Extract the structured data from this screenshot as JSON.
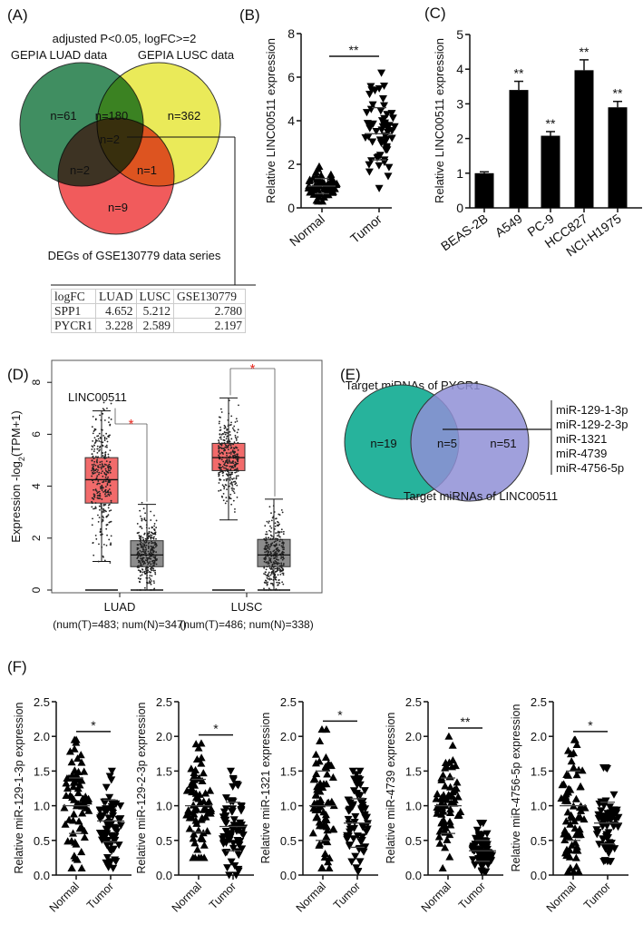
{
  "panel_labels": [
    "(A)",
    "(B)",
    "(C)",
    "(D)",
    "(E)",
    "(F)"
  ],
  "chart_data": [
    {
      "panel": "A",
      "type": "venn",
      "title": "adjusted P<0.05, logFC>=2",
      "sets": [
        {
          "name": "GEPIA LUAD data",
          "color": "#1f7a45"
        },
        {
          "name": "GEPIA LUSC data",
          "color": "#e6e63c"
        },
        {
          "name": "DEGs of GSE130779 data series",
          "color": "#ee3e40"
        }
      ],
      "regions": {
        "luad_only": "n=61",
        "luad_lusc": "n=180",
        "lusc_only": "n=362",
        "all_three": "n=2",
        "luad_gse": "n=2",
        "lusc_gse": "n=1",
        "gse_only": "n=9"
      },
      "table": {
        "header": [
          "logFC",
          "LUAD",
          "LUSC",
          "GSE130779"
        ],
        "rows": [
          [
            "SPP1",
            "4.652",
            "5.212",
            "2.780"
          ],
          [
            "PYCR1",
            "3.228",
            "2.589",
            "2.197"
          ]
        ]
      }
    },
    {
      "panel": "B",
      "type": "scatter",
      "ylabel": "Relative LINC00511 expression",
      "ylim": [
        0,
        8
      ],
      "yticks": [
        0,
        2,
        4,
        6,
        8
      ],
      "categories": [
        "Normal",
        "Tumor"
      ],
      "groups": [
        {
          "mean": 1.0,
          "sd": 0.35,
          "min": 0.3,
          "max": 1.9,
          "marker": "triangle-up"
        },
        {
          "mean": 3.4,
          "sd": 1.2,
          "min": 0.9,
          "max": 6.2,
          "marker": "triangle-down"
        }
      ],
      "significance": "**"
    },
    {
      "panel": "C",
      "type": "bar",
      "ylabel": "Relative LINC00511 expression",
      "ylim": [
        0,
        5
      ],
      "yticks": [
        0,
        1,
        2,
        3,
        4,
        5
      ],
      "categories": [
        "BEAS-2B",
        "A549",
        "PC-9",
        "HCC827",
        "NCI-H1975"
      ],
      "values": [
        1.0,
        3.4,
        2.08,
        3.97,
        2.9
      ],
      "errors": [
        0.04,
        0.25,
        0.12,
        0.3,
        0.17
      ],
      "significance": [
        "",
        "**",
        "**",
        "**",
        "**"
      ],
      "color": "#000000"
    },
    {
      "panel": "D",
      "type": "box",
      "title": "LINC00511",
      "ylabel": {
        "prefix": "Expression -log",
        "sub": "2",
        "suffix": "(TPM+1)"
      },
      "ylim": [
        0,
        8
      ],
      "yticks": [
        0,
        2,
        4,
        6,
        8
      ],
      "categories": [
        {
          "label": "LUAD",
          "sub": "(num(T)=483; num(N)=347)"
        },
        {
          "label": "LUSC",
          "sub": "(num(T)=486; num(N)=338)"
        }
      ],
      "boxes": [
        {
          "group": "LUAD",
          "type": "T",
          "q1": 3.35,
          "median": 4.25,
          "q3": 5.1,
          "low": 1.1,
          "high": 6.9,
          "color": "#f26b6b"
        },
        {
          "group": "LUAD",
          "type": "N",
          "q1": 0.9,
          "median": 1.35,
          "q3": 1.9,
          "low": 0.0,
          "high": 3.3,
          "color": "#8c8c8c"
        },
        {
          "group": "LUSC",
          "type": "T",
          "q1": 4.6,
          "median": 5.1,
          "q3": 5.65,
          "low": 2.7,
          "high": 7.4,
          "color": "#f26b6b"
        },
        {
          "group": "LUSC",
          "type": "N",
          "q1": 0.9,
          "median": 1.35,
          "q3": 1.95,
          "low": 0.0,
          "high": 3.5,
          "color": "#8c8c8c"
        }
      ],
      "significance": "*",
      "significance_color": "#e8281e"
    },
    {
      "panel": "E",
      "type": "venn",
      "sets": [
        {
          "name": "Target miRNAs of PYCR1",
          "color": "#27b39c"
        },
        {
          "name": "Target miRNAs of LINC00511",
          "color": "#8f8fd6"
        }
      ],
      "regions": {
        "pycr1_only": "n=19",
        "both": "n=5",
        "linc_only": "n=51"
      },
      "overlap_list": [
        "miR-129-1-3p",
        "miR-129-2-3p",
        "miR-1321",
        "miR-4739",
        "miR-4756-5p"
      ]
    },
    {
      "panel": "F",
      "type": "scatter",
      "ylim": [
        0,
        2.5
      ],
      "yticks": [
        "0.0",
        "0.5",
        "1.0",
        "1.5",
        "2.0",
        "2.5"
      ],
      "categories": [
        "Normal",
        "Tumor"
      ],
      "subplots": [
        {
          "ylabel": "Relative miR-129-1-3p expression",
          "significance": "*",
          "groups": [
            {
              "mean": 1.0,
              "sd": 0.4,
              "min": 0.1,
              "max": 1.95
            },
            {
              "mean": 0.78,
              "sd": 0.3,
              "min": 0.1,
              "max": 1.5
            }
          ]
        },
        {
          "ylabel": "Relative miR-129-2-3p expression",
          "significance": "*",
          "groups": [
            {
              "mean": 1.0,
              "sd": 0.38,
              "min": 0.25,
              "max": 1.9
            },
            {
              "mean": 0.7,
              "sd": 0.35,
              "min": 0.0,
              "max": 1.5
            }
          ]
        },
        {
          "ylabel": "Relative miR-1321 expression",
          "significance": "*",
          "groups": [
            {
              "mean": 1.0,
              "sd": 0.5,
              "min": 0.1,
              "max": 2.1
            },
            {
              "mean": 0.75,
              "sd": 0.35,
              "min": 0.05,
              "max": 1.5
            }
          ]
        },
        {
          "ylabel": "Relative miR-4739 expression",
          "significance": "**",
          "groups": [
            {
              "mean": 1.0,
              "sd": 0.4,
              "min": 0.1,
              "max": 2.0
            },
            {
              "mean": 0.35,
              "sd": 0.15,
              "min": 0.05,
              "max": 0.75
            }
          ]
        },
        {
          "ylabel": "Relative miR-4756-5p expression",
          "significance": "*",
          "groups": [
            {
              "mean": 1.0,
              "sd": 0.5,
              "min": 0.05,
              "max": 1.95
            },
            {
              "mean": 0.75,
              "sd": 0.3,
              "min": 0.2,
              "max": 1.55
            }
          ]
        }
      ]
    }
  ]
}
